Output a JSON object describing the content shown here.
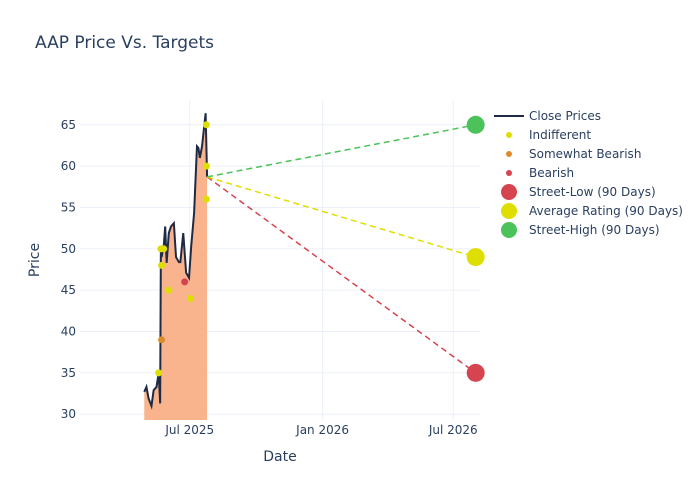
{
  "chart_data": {
    "type": "line",
    "title": "AAP Price Vs. Targets",
    "xlabel": "Date",
    "ylabel": "Price",
    "xlim": [
      "2025-01-30",
      "2026-08-07"
    ],
    "ylim": [
      29.3,
      68
    ],
    "grid": true,
    "legend_position": "right",
    "x_ticks": [
      {
        "date": "2025-07-01",
        "label": "Jul 2025"
      },
      {
        "date": "2026-01-01",
        "label": "Jan 2026"
      },
      {
        "date": "2026-07-01",
        "label": "Jul 2026"
      }
    ],
    "y_ticks": [
      30,
      35,
      40,
      45,
      50,
      55,
      60,
      65
    ],
    "colors": {
      "close": "#1f2a44",
      "fill": "#f9b48e",
      "indifferent": "#dede00",
      "somewhat_bearish": "#dd8a2a",
      "bearish": "#d6444f",
      "street_high": "#4bc25a"
    },
    "series": [
      {
        "name": "Close Prices",
        "kind": "line",
        "points": [
          [
            "2025-04-29",
            32.7
          ],
          [
            "2025-05-02",
            33.3
          ],
          [
            "2025-05-05",
            31.9
          ],
          [
            "2025-05-09",
            31.0
          ],
          [
            "2025-05-12",
            32.9
          ],
          [
            "2025-05-16",
            33.3
          ],
          [
            "2025-05-19",
            35.0
          ],
          [
            "2025-05-21",
            31.3
          ],
          [
            "2025-05-22",
            49.9
          ],
          [
            "2025-05-23",
            49.0
          ],
          [
            "2025-05-26",
            50.4
          ],
          [
            "2025-05-28",
            52.7
          ],
          [
            "2025-05-30",
            48.3
          ],
          [
            "2025-06-02",
            51.9
          ],
          [
            "2025-06-05",
            52.7
          ],
          [
            "2025-06-09",
            53.1
          ],
          [
            "2025-06-12",
            49.0
          ],
          [
            "2025-06-16",
            48.4
          ],
          [
            "2025-06-18",
            48.4
          ],
          [
            "2025-06-22",
            51.9
          ],
          [
            "2025-06-26",
            47.1
          ],
          [
            "2025-06-30",
            46.5
          ],
          [
            "2025-07-03",
            50.3
          ],
          [
            "2025-07-07",
            54.3
          ],
          [
            "2025-07-11",
            62.4
          ],
          [
            "2025-07-13",
            62.2
          ],
          [
            "2025-07-15",
            61.0
          ],
          [
            "2025-07-18",
            62.4
          ],
          [
            "2025-07-23",
            66.4
          ],
          [
            "2025-07-25",
            58.7
          ]
        ]
      },
      {
        "name": "Indifferent",
        "kind": "marker",
        "points": [
          [
            "2025-05-19",
            35
          ],
          [
            "2025-05-22",
            50
          ],
          [
            "2025-05-26",
            50
          ],
          [
            "2025-05-23",
            48
          ],
          [
            "2025-06-02",
            45
          ],
          [
            "2025-07-02",
            44
          ],
          [
            "2025-07-24",
            65
          ],
          [
            "2025-07-24",
            60
          ],
          [
            "2025-07-24",
            56
          ]
        ]
      },
      {
        "name": "Somewhat Bearish",
        "kind": "marker",
        "points": [
          [
            "2025-05-23",
            39
          ]
        ]
      },
      {
        "name": "Bearish",
        "kind": "marker",
        "points": [
          [
            "2025-06-24",
            46
          ]
        ]
      },
      {
        "name": "Street-Low (90 Days)",
        "kind": "target",
        "points": [
          [
            "2025-07-25",
            58.7
          ],
          [
            "2026-08-01",
            35
          ]
        ]
      },
      {
        "name": "Average Rating (90 Days)",
        "kind": "target",
        "points": [
          [
            "2025-07-25",
            58.7
          ],
          [
            "2026-08-01",
            49
          ]
        ]
      },
      {
        "name": "Street-High (90 Days)",
        "kind": "target",
        "points": [
          [
            "2025-07-25",
            58.7
          ],
          [
            "2026-08-01",
            65
          ]
        ]
      }
    ]
  }
}
